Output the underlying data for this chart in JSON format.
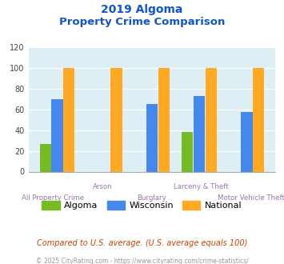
{
  "title_line1": "2019 Algoma",
  "title_line2": "Property Crime Comparison",
  "categories": [
    "All Property Crime",
    "Arson",
    "Burglary",
    "Larceny & Theft",
    "Motor Vehicle Theft"
  ],
  "algoma": [
    27,
    0,
    0,
    38,
    0
  ],
  "wisconsin": [
    70,
    0,
    65,
    73,
    58
  ],
  "national": [
    100,
    100,
    100,
    100,
    100
  ],
  "color_algoma": "#77bb22",
  "color_wisconsin": "#4488ee",
  "color_national": "#ffaa22",
  "color_title": "#1155cc",
  "color_xlabel": "#9977aa",
  "color_bg_plot": "#ddeef4",
  "color_grid": "#ffffff",
  "color_footnote1": "#cc4400",
  "color_footnote2": "#999999",
  "ylim": [
    0,
    120
  ],
  "yticks": [
    0,
    20,
    40,
    60,
    80,
    100,
    120
  ],
  "footnote1": "Compared to U.S. average. (U.S. average equals 100)",
  "footnote2": "© 2025 CityRating.com - https://www.cityrating.com/crime-statistics/",
  "legend_labels": [
    "Algoma",
    "Wisconsin",
    "National"
  ]
}
